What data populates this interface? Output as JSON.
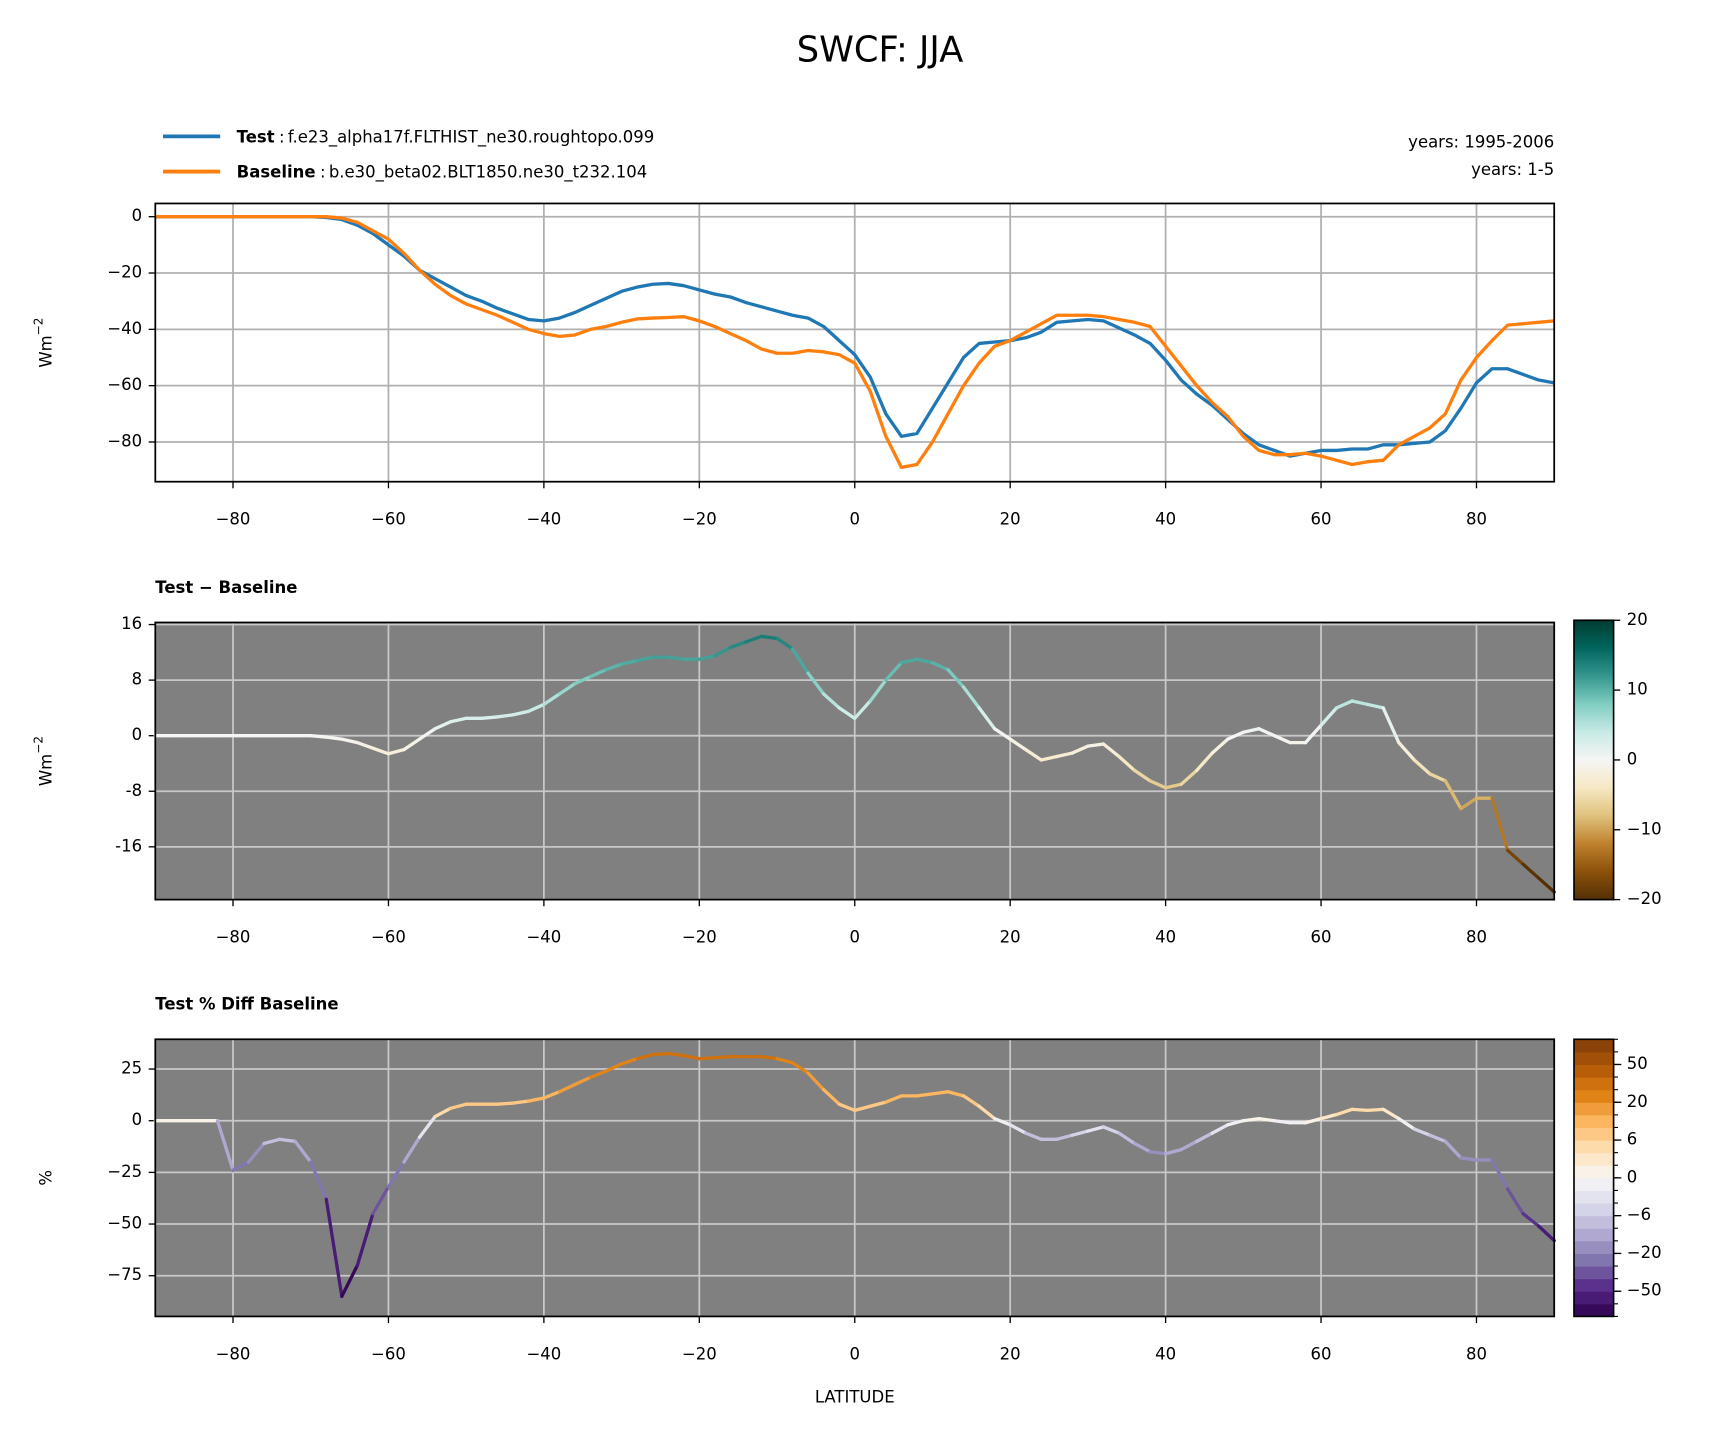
{
  "figure_title": "SWCF: JJA",
  "chart_data": [
    {
      "type": "line",
      "coloring": "series",
      "ylabel": "Wm",
      "ylabel_sup": "−2",
      "legend_sep": ":",
      "x": [
        -90,
        -88,
        -86,
        -84,
        -82,
        -80,
        -78,
        -76,
        -74,
        -72,
        -70,
        -68,
        -66,
        -64,
        -62,
        -60,
        -58,
        -56,
        -54,
        -52,
        -50,
        -48,
        -46,
        -44,
        -42,
        -40,
        -38,
        -36,
        -34,
        -32,
        -30,
        -28,
        -26,
        -24,
        -22,
        -20,
        -18,
        -16,
        -14,
        -12,
        -10,
        -8,
        -6,
        -4,
        -2,
        0,
        2,
        4,
        6,
        8,
        10,
        12,
        14,
        16,
        18,
        20,
        22,
        24,
        26,
        28,
        30,
        32,
        34,
        36,
        38,
        40,
        42,
        44,
        46,
        48,
        50,
        52,
        54,
        56,
        58,
        60,
        62,
        64,
        66,
        68,
        70,
        72,
        74,
        76,
        78,
        80,
        82,
        84,
        86,
        88,
        90
      ],
      "series": [
        {
          "name": "Test",
          "case": "f.e23_alpha17f.FLTHIST_ne30.roughtopo.099",
          "years": "years: 1995-2006",
          "color": "#1f77b4",
          "values": [
            0,
            0,
            0,
            0,
            0,
            0,
            0,
            0,
            0,
            0,
            0,
            -0.3,
            -1,
            -3,
            -6,
            -10,
            -14,
            -19,
            -22,
            -25,
            -28,
            -30,
            -32.5,
            -34.5,
            -36.5,
            -37,
            -36,
            -34,
            -31.5,
            -29,
            -26.5,
            -25,
            -24,
            -23.7,
            -24.5,
            -26,
            -27.5,
            -28.5,
            -30.5,
            -32,
            -33.5,
            -35,
            -36,
            -39,
            -44,
            -49,
            -57,
            -70,
            -78,
            -77,
            -68,
            -59,
            -50,
            -45,
            -44.5,
            -44,
            -43,
            -41,
            -37.5,
            -37,
            -36.5,
            -37,
            -39.5,
            -42,
            -45,
            -51,
            -58,
            -63,
            -67,
            -72,
            -77,
            -81,
            -83,
            -85,
            -84,
            -83,
            -83,
            -82.5,
            -82.5,
            -81,
            -81,
            -80.5,
            -80,
            -76,
            -68,
            -59,
            -54,
            -54,
            -56,
            -58,
            -59
          ]
        },
        {
          "name": "Baseline",
          "case": "b.e30_beta02.BLT1850.ne30_t232.104",
          "years": "years: 1-5",
          "color": "#ff7f0e",
          "values": [
            0,
            0,
            0,
            0,
            0,
            0,
            0,
            0,
            0,
            0,
            0,
            0,
            -0.5,
            -2,
            -5,
            -8,
            -13,
            -19,
            -24,
            -28,
            -31,
            -33,
            -35,
            -37.5,
            -40,
            -41.5,
            -42.5,
            -42,
            -40,
            -39,
            -37.5,
            -36.3,
            -36,
            -35.8,
            -35.5,
            -37,
            -39,
            -41.5,
            -44,
            -47,
            -48.5,
            -48.5,
            -47.5,
            -48,
            -49,
            -52,
            -62,
            -78,
            -89,
            -88,
            -80,
            -70,
            -60,
            -52,
            -46,
            -44,
            -41,
            -38,
            -35,
            -35,
            -35,
            -35.5,
            -36.5,
            -37.5,
            -39,
            -46,
            -53,
            -60,
            -66,
            -71,
            -78,
            -83,
            -84.5,
            -84.5,
            -84,
            -85,
            -86.5,
            -88,
            -87,
            -86.5,
            -81,
            -78,
            -75,
            -70,
            -58,
            -50,
            -44,
            -38.5,
            -38,
            -37.5,
            -37
          ]
        }
      ],
      "xlim": [
        -90,
        90
      ],
      "xticks": [
        {
          "value": -80,
          "label": "−80"
        },
        {
          "value": -60,
          "label": "−60"
        },
        {
          "value": -40,
          "label": "−40"
        },
        {
          "value": -20,
          "label": "−20"
        },
        0,
        20,
        40,
        60,
        80
      ],
      "ylim": [
        -94.1,
        4.7
      ],
      "yticks": [
        0,
        {
          "value": -20,
          "label": "−20"
        },
        {
          "value": -40,
          "label": "−40"
        },
        {
          "value": -60,
          "label": "−60"
        },
        {
          "value": -80,
          "label": "−80"
        }
      ],
      "grid": true
    },
    {
      "type": "line",
      "coloring": "colormap",
      "title": "Test − Baseline",
      "ylabel": "Wm",
      "ylabel_sup": "−2",
      "x": [
        -90,
        -88,
        -86,
        -84,
        -82,
        -80,
        -78,
        -76,
        -74,
        -72,
        -70,
        -68,
        -66,
        -64,
        -62,
        -60,
        -58,
        -56,
        -54,
        -52,
        -50,
        -48,
        -46,
        -44,
        -42,
        -40,
        -38,
        -36,
        -34,
        -32,
        -30,
        -28,
        -26,
        -24,
        -22,
        -20,
        -18,
        -16,
        -14,
        -12,
        -10,
        -8,
        -6,
        -4,
        -2,
        0,
        2,
        4,
        6,
        8,
        10,
        12,
        14,
        16,
        18,
        20,
        22,
        24,
        26,
        28,
        30,
        32,
        34,
        36,
        38,
        40,
        42,
        44,
        46,
        48,
        50,
        52,
        54,
        56,
        58,
        60,
        62,
        64,
        66,
        68,
        70,
        72,
        74,
        76,
        78,
        80,
        82,
        84,
        86,
        88,
        90
      ],
      "values": [
        0,
        0,
        0,
        0,
        0,
        0,
        0,
        0,
        0,
        0,
        0,
        -0.2,
        -0.5,
        -1,
        -1.8,
        -2.6,
        -2,
        -0.5,
        1,
        2,
        2.5,
        2.5,
        2.7,
        3,
        3.5,
        4.5,
        6,
        7.5,
        8.5,
        9.5,
        10.3,
        10.8,
        11.3,
        11.3,
        11,
        11,
        11.5,
        12.7,
        13.5,
        14.3,
        14,
        12.5,
        9,
        6,
        4,
        2.5,
        5,
        8,
        10.5,
        11,
        10.5,
        9.5,
        7,
        4,
        1,
        -0.5,
        -2,
        -3.5,
        -3,
        -2.5,
        -1.5,
        -1.2,
        -3,
        -5,
        -6.5,
        -7.5,
        -7,
        -5,
        -2.5,
        -0.5,
        0.5,
        1,
        0,
        -1,
        -1,
        1.5,
        4,
        5,
        4.5,
        4,
        -1,
        -3.5,
        -5.5,
        -6.5,
        -10.5,
        -9,
        -9,
        -16.5,
        -18.5,
        -20.5,
        -22.5
      ],
      "colormap": [
        "#543005",
        "#8c510a",
        "#bf812d",
        "#dfc27d",
        "#f6e8c3",
        "#f5f5f5",
        "#c7eae5",
        "#80cdc1",
        "#35978f",
        "#01665e",
        "#003c30"
      ],
      "colorbar": {
        "lim": [
          -20,
          20
        ],
        "ticks": [
          {
            "value": -20,
            "label": "−20"
          },
          {
            "value": -10,
            "label": "−10"
          },
          0,
          10,
          20
        ]
      },
      "xlim": [
        -90,
        90
      ],
      "xticks": [
        {
          "value": -80,
          "label": "−80"
        },
        {
          "value": -60,
          "label": "−60"
        },
        {
          "value": -40,
          "label": "−40"
        },
        {
          "value": -20,
          "label": "−20"
        },
        0,
        20,
        40,
        60,
        80
      ],
      "ylim": [
        -23.6,
        16.3
      ],
      "yticks": [
        16,
        8,
        0,
        {
          "value": -8,
          "label": "-8"
        },
        {
          "value": -16,
          "label": "-16"
        }
      ],
      "grid": true,
      "background": "#808080"
    },
    {
      "type": "line",
      "coloring": "levels",
      "title": "Test % Diff Baseline",
      "ylabel": "%",
      "xlabel": "LATITUDE",
      "x": [
        -90,
        -88,
        -86,
        -84,
        -82,
        -80,
        -78,
        -76,
        -74,
        -72,
        -70,
        -68,
        -66,
        -64,
        -62,
        -60,
        -58,
        -56,
        -54,
        -52,
        -50,
        -48,
        -46,
        -44,
        -42,
        -40,
        -38,
        -36,
        -34,
        -32,
        -30,
        -28,
        -26,
        -24,
        -22,
        -20,
        -18,
        -16,
        -14,
        -12,
        -10,
        -8,
        -6,
        -4,
        -2,
        0,
        2,
        4,
        6,
        8,
        10,
        12,
        14,
        16,
        18,
        20,
        22,
        24,
        26,
        28,
        30,
        32,
        34,
        36,
        38,
        40,
        42,
        44,
        46,
        48,
        50,
        52,
        54,
        56,
        58,
        60,
        62,
        64,
        66,
        68,
        70,
        72,
        74,
        76,
        78,
        80,
        82,
        84,
        86,
        88,
        90
      ],
      "values": [
        0,
        0,
        0,
        0,
        0,
        -24,
        -20,
        -11,
        -9,
        -10,
        -20,
        -38,
        -85,
        -70,
        -45,
        -32,
        -20,
        -8,
        2,
        6,
        8,
        8,
        8,
        8.5,
        9.5,
        11,
        14,
        17.5,
        21,
        24,
        27.5,
        30,
        32,
        32.5,
        31.5,
        30,
        30.5,
        31,
        31,
        31,
        30,
        28,
        23,
        15,
        8,
        5,
        7,
        9,
        12,
        12,
        13,
        14,
        12,
        7,
        1,
        -2,
        -6,
        -9,
        -9,
        -7,
        -5,
        -3,
        -6,
        -11,
        -15,
        -16,
        -14,
        -10,
        -6,
        -2,
        0,
        1,
        0,
        -1,
        -1,
        1,
        3,
        5.5,
        5,
        5.5,
        1,
        -4,
        -7,
        -10,
        -18,
        -19,
        -19,
        -33,
        -45,
        -51,
        -58
      ],
      "colormap": [
        "#2d004b",
        "#542788",
        "#8073ac",
        "#b2abd2",
        "#d8daeb",
        "#f7f7f7",
        "#fee0b6",
        "#fdb863",
        "#e08214",
        "#b35806",
        "#7f3b08"
      ],
      "colorbar": {
        "levels": [
          -100,
          -75,
          -50,
          -40,
          -30,
          -20,
          -15,
          -10,
          -6,
          -4,
          -2,
          0,
          2,
          4,
          6,
          10,
          15,
          20,
          30,
          40,
          50,
          75,
          100
        ],
        "ticks": [
          {
            "value": -50,
            "label": "−50"
          },
          {
            "value": -20,
            "label": "−20"
          },
          {
            "value": -6,
            "label": "−6"
          },
          0,
          6,
          20,
          50
        ]
      },
      "xlim": [
        -90,
        90
      ],
      "xticks": [
        {
          "value": -80,
          "label": "−80"
        },
        {
          "value": -60,
          "label": "−60"
        },
        {
          "value": -40,
          "label": "−40"
        },
        {
          "value": -20,
          "label": "−20"
        },
        0,
        20,
        40,
        60,
        80
      ],
      "ylim": [
        -94.7,
        39.4
      ],
      "yticks": [
        25,
        0,
        {
          "value": -25,
          "label": "−25"
        },
        {
          "value": -50,
          "label": "−50"
        },
        {
          "value": -75,
          "label": "−75"
        }
      ],
      "grid": true,
      "background": "#808080"
    }
  ]
}
